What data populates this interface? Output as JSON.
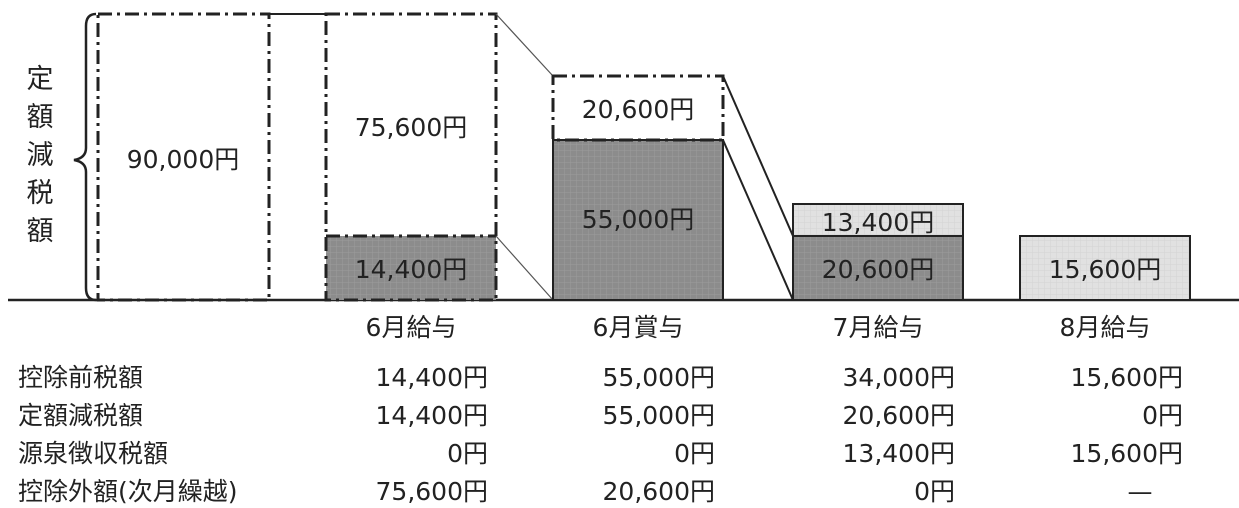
{
  "vertical_label": [
    "定",
    "額",
    "減",
    "税",
    "額"
  ],
  "total_box_label": "90,000円",
  "months": [
    {
      "label": "6月給与",
      "withheld_label": "14,400円",
      "carry_label": "75,600円"
    },
    {
      "label": "6月賞与",
      "withheld_label": "55,000円",
      "carry_label": "20,600円"
    },
    {
      "label": "7月給与",
      "withheld_label": "20,600円",
      "carry_label": "13,400円"
    },
    {
      "label": "8月給与",
      "carry_label": "15,600円"
    }
  ],
  "table": {
    "row_labels": [
      "控除前税額",
      "定額減税額",
      "源泉徴収税額",
      "控除外額(次月繰越)"
    ],
    "values": [
      [
        "14,400円",
        "55,000円",
        "34,000円",
        "15,600円"
      ],
      [
        "14,400円",
        "55,000円",
        "20,600円",
        "0円"
      ],
      [
        "0円",
        "0円",
        "13,400円",
        "15,600円"
      ],
      [
        "75,600円",
        "20,600円",
        "0円",
        "—"
      ]
    ]
  },
  "colors": {
    "dark_fill": "#8c8c8c",
    "light_fill": "#e1e1e1",
    "stroke": "#222222"
  }
}
